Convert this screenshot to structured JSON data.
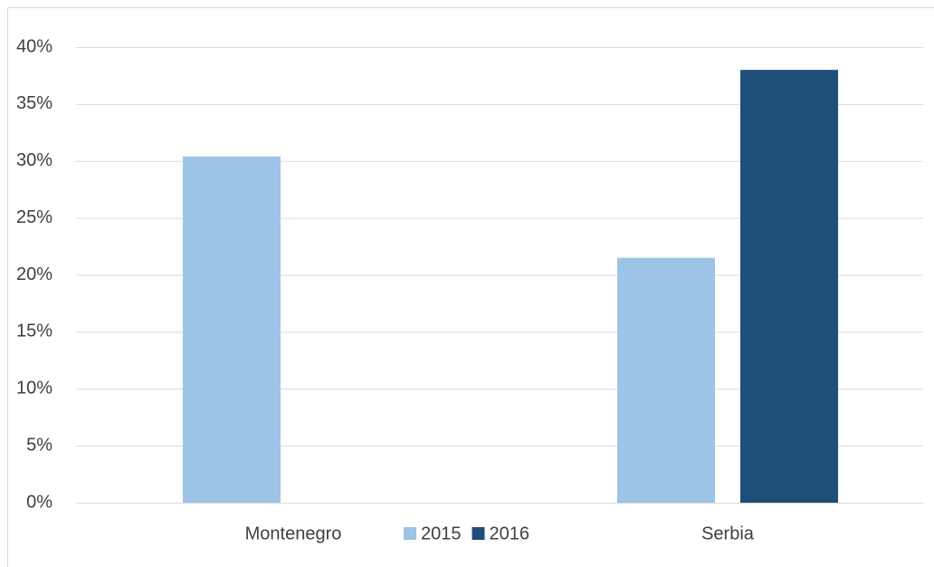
{
  "chart_data": {
    "type": "bar",
    "categories": [
      "Montenegro",
      "Serbia"
    ],
    "series": [
      {
        "name": "2015",
        "color": "#9dc3e6",
        "values": [
          30.4,
          21.5
        ]
      },
      {
        "name": "2016",
        "color": "#1f4e79",
        "values": [
          null,
          38
        ]
      }
    ],
    "ylim": [
      0,
      40
    ],
    "yticks": [
      {
        "value": 0,
        "label": "0%"
      },
      {
        "value": 5,
        "label": "5%"
      },
      {
        "value": 10,
        "label": "10%"
      },
      {
        "value": 15,
        "label": "15%"
      },
      {
        "value": 20,
        "label": "20%"
      },
      {
        "value": 25,
        "label": "25%"
      },
      {
        "value": 30,
        "label": "30%"
      },
      {
        "value": 35,
        "label": "35%"
      },
      {
        "value": 40,
        "label": "40%"
      }
    ],
    "grid": true,
    "legend": "bottom"
  }
}
